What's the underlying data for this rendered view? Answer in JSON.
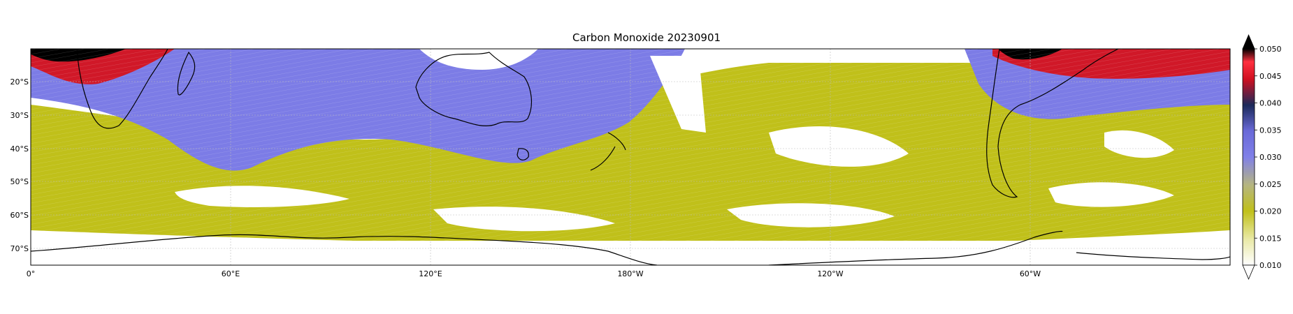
{
  "title": "Carbon Monoxide 20230901",
  "lat_ticks": [
    "20°S",
    "30°S",
    "40°S",
    "50°S",
    "60°S",
    "70°S"
  ],
  "lon_ticks": [
    "0°",
    "60°E",
    "120°E",
    "180°W",
    "120°W",
    "60°W"
  ],
  "colorbar": {
    "ticks": [
      "0.050",
      "0.045",
      "0.040",
      "0.035",
      "0.030",
      "0.025",
      "0.020",
      "0.015",
      "0.010"
    ],
    "min": 0.01,
    "max": 0.05,
    "extend": "both",
    "stops": [
      "#ffffff",
      "#e9e9a6",
      "#c0c01a",
      "#b5b580",
      "#8080e8",
      "#6a6ad8",
      "#1c2a5a",
      "#d01020",
      "#ff3040",
      "#000000"
    ]
  },
  "colors": {
    "low_co": "#c0c01a",
    "mid_co": "#7c7ce6",
    "high_co": "#d01828",
    "very_high_co": "#000000",
    "coastline": "#000000"
  }
}
